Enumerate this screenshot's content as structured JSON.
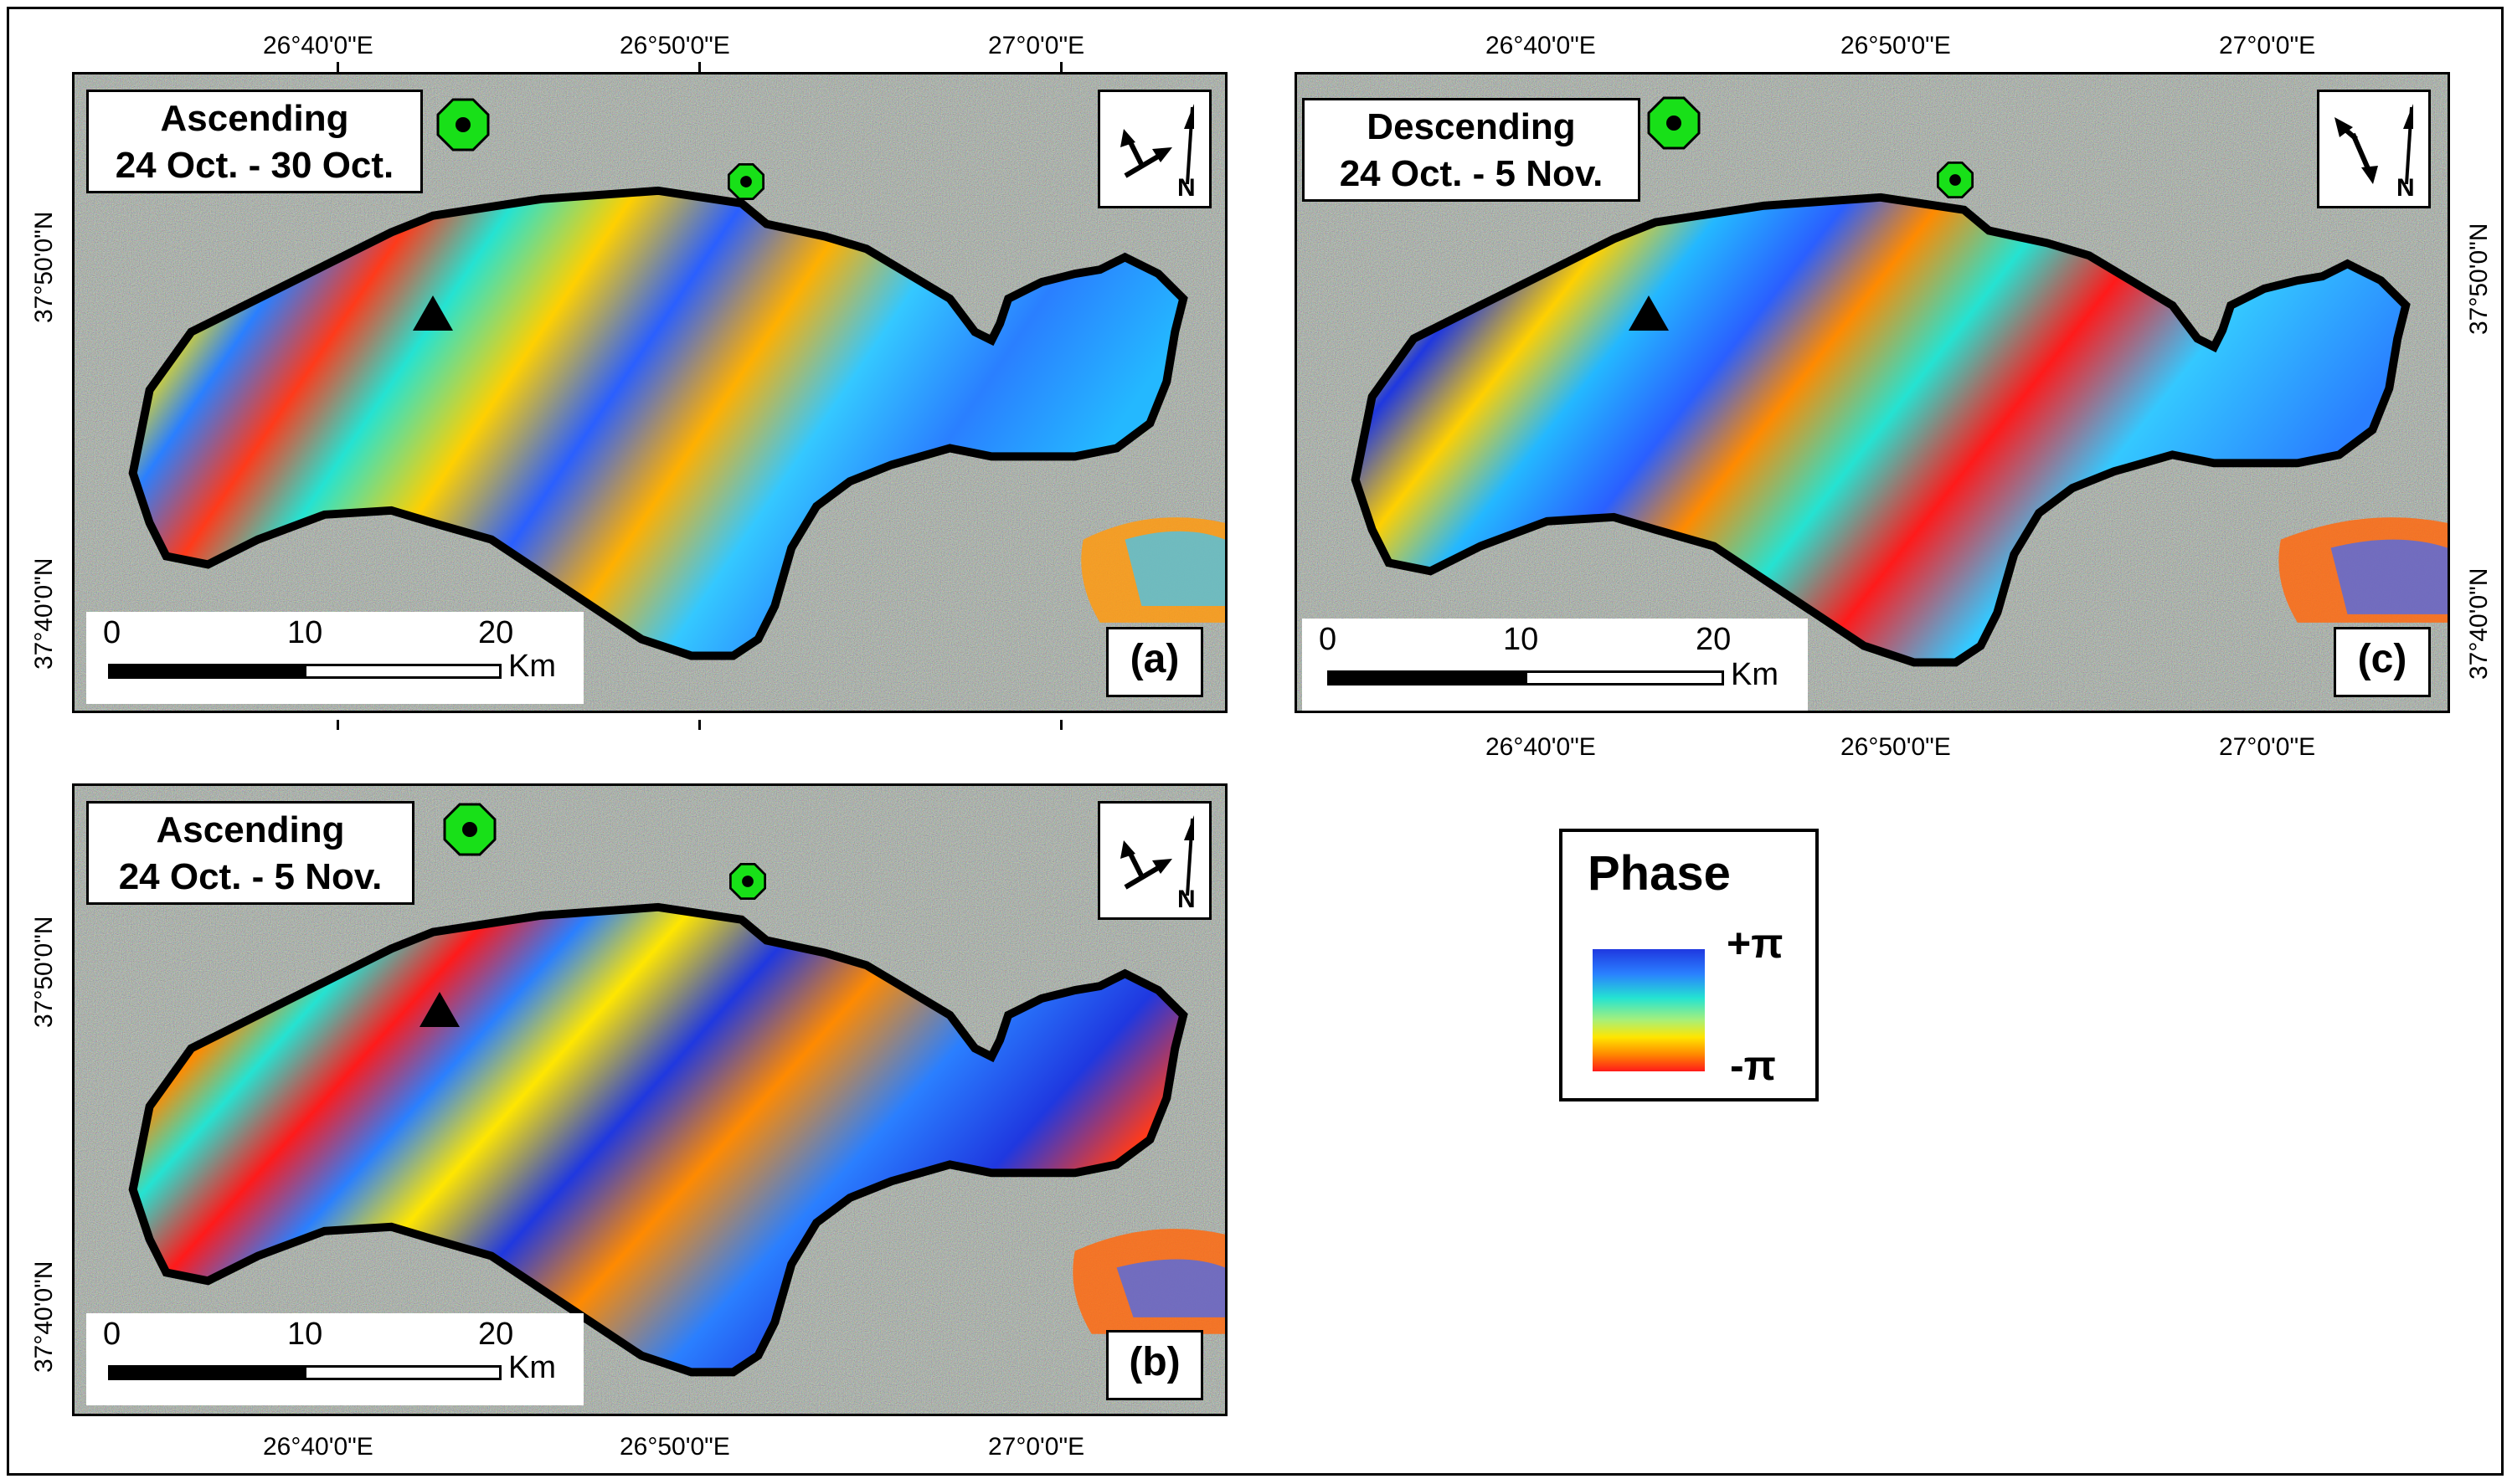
{
  "panels": {
    "a": {
      "title_line1": "Ascending",
      "title_line2": "24 Oct. - 30 Oct.",
      "label": "(a)"
    },
    "b": {
      "title_line1": "Ascending",
      "title_line2": "24 Oct. - 5 Nov.",
      "label": "(b)"
    },
    "c": {
      "title_line1": "Descending",
      "title_line2": "24 Oct. - 5 Nov.",
      "label": "(c)"
    }
  },
  "longitude_labels": [
    "26°40'0\"E",
    "26°50'0\"E",
    "27°0'0\"E"
  ],
  "latitude_labels": [
    "37°50'0\"N",
    "37°40'0\"N"
  ],
  "scale_bar": {
    "ticks": [
      "0",
      "10",
      "20"
    ],
    "unit": "Km"
  },
  "legend": {
    "title": "Phase",
    "max_label": "+π",
    "min_label": "-π",
    "colors": [
      "#1f38e0",
      "#2a7fff",
      "#24e3d2",
      "#a6f07a",
      "#ffe600",
      "#ff8a00",
      "#ff1a1a"
    ]
  },
  "markers": {
    "volcano_icon": "black-triangle-icon",
    "station_icon": "green-octagon-icon"
  },
  "colors": {
    "marker_green": "#18e018",
    "outline": "#000000",
    "noise_base": "#9aa79a"
  }
}
